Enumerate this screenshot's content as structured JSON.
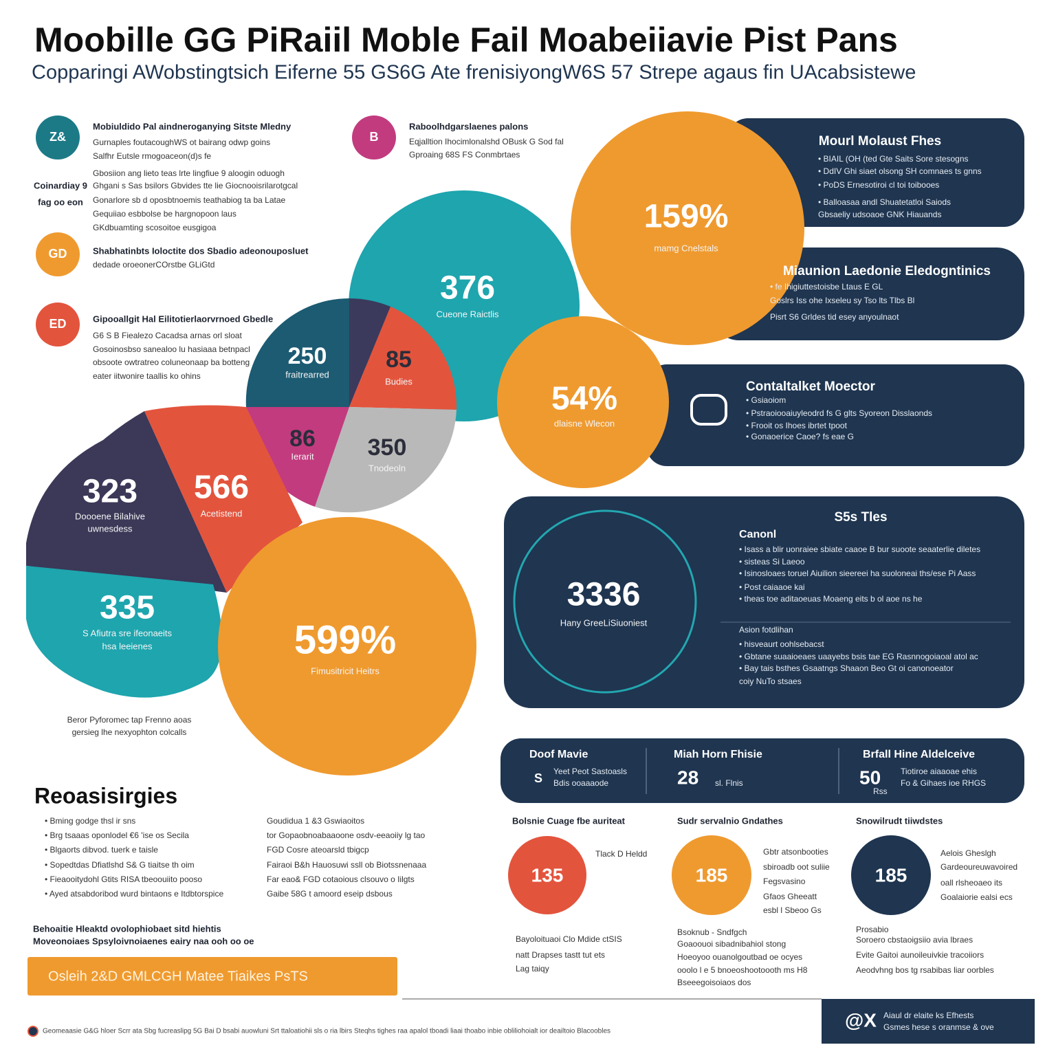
{
  "header": {
    "title": "Moobille GG PiRaiil Moble Fail Moabeiiavie Pist Pans",
    "subtitle": "Copparingi AWobstingtsich Eiferne 55 GS6G Ate frenisiyongW6S 57 Strepe agaus fin UAcabsistewe"
  },
  "features": [
    {
      "icon": "Z&",
      "title": "Mobiuldido Pal aindneroganying Sitste Mledny",
      "lines": [
        "Gurnaples foutacoughWS ot bairang odwp goins",
        "Salfhr Eutsle rmogoaceon(d)s fe",
        "Gbosiion ang lieto teas lrte lingfiue 9 aloogin oduogh",
        "Ghgani s Sas bsilors Gbvides tte lie Giocnooisrilarotgcal",
        "Gonarlore sb d oposbtnoemis teathabiog ta ba Latae",
        "Gequiiao esbbolse be hargnopoon laus",
        "GKdbuamting scosoitoe eusgigoa"
      ],
      "side": [
        "Coinardiay 9",
        "fag oo eon"
      ]
    },
    {
      "icon": "GD",
      "title": "Shabhatinbts Ioloctite dos Sbadio adeonouposluet",
      "lines": [
        "dedade oroeonerCOrstbe GLiGtd"
      ]
    },
    {
      "icon": "ED",
      "title": "Gipooallgit Hal Eilitotierlaorvrnoed Gbedle",
      "lines": [
        "G6 S B Fiealezo Cacadsa arnas orl sloat",
        "Gosoinosbso sanealoo lu hasiaaa betnpacl",
        "obsoote owtratreo coluneonaap ba botteng",
        "eater iitwonire taallis ko ohins"
      ]
    },
    {
      "icon": "B",
      "title": "Raboolhdgarslaenes palons",
      "lines": [
        "Eqjalltion Ihocimlonalshd OBusk G Sod fal",
        "Gproaing 68S FS Conmbrtaes"
      ]
    }
  ],
  "pie": [
    {
      "value": "250",
      "caption": "fraitrearred"
    },
    {
      "value": "85",
      "caption": "Budies"
    },
    {
      "value": "86",
      "caption": "Ierarit"
    },
    {
      "value": "350",
      "caption": "Tnodeoln"
    }
  ],
  "blocks": [
    {
      "value": "323",
      "caption": [
        "Doooene Bilahive",
        "uwnesdess"
      ]
    },
    {
      "value": "566",
      "caption": [
        "Acetistend"
      ]
    },
    {
      "value": "335",
      "caption": [
        "S Afiutra sre ifeonaeits",
        "hsa leeienes"
      ]
    }
  ],
  "circles": [
    {
      "value": "599%",
      "caption": "Fimusitricit Heitrs"
    },
    {
      "value": "376",
      "caption": "Cueone Raictlis"
    },
    {
      "value": "159%",
      "caption": "mamg Cnelstals"
    },
    {
      "value": "54%",
      "caption": "dlaisne Wlecon"
    }
  ],
  "note": [
    "Beror Pyforomec tap Frenno aoas",
    "gersieg lhe nexyophton colcalls"
  ],
  "panels": [
    {
      "title": "Mourl Molaust Fhes",
      "lines": [
        "• BIAIL (OH (ted Gte Saits Sore stesogns",
        "• DdIV Ghi siaet olsong SH comnaes ts gnns",
        "• PoDS Ernesotiroi cl toi toibooes",
        "• Balloasaa andl Shuatetatloi Saiods",
        "Gbsaeliy udsoaoe GNK Hiauands"
      ]
    },
    {
      "title": "Miaunion Laedonie Eledogntinics",
      "lines": [
        "• fe Ihigiuttestoisbe Ltaus E GL",
        "Goslrs Iss ohe Ixseleu sy Tso lts Tlbs Bl",
        "Pisrt S6 Grldes tid esey anyoulnaot"
      ]
    },
    {
      "title": "Contaltalket Moector",
      "lines": [
        "• Gsiaoiom",
        "• Pstraoiooaiuyleodrd fs G glts Syoreon Disslaonds",
        "• Frooit os Ihoes ibrtet tpoot",
        "• Gonaoerice Caoe? fs eae G"
      ]
    }
  ],
  "summary": {
    "value": "3336",
    "caption": "Hany GreeLiSiuoniest",
    "title": "S5s Tles",
    "subtitle": "Canonl",
    "lines": [
      "• Isass a blir uonraiee sbiate caaoe B bur suoote seaaterlie diletes",
      "• sisteas Si Laeoo",
      "• Isinosloaes toruel Aiuilion sieereei ha suoloneai ths/ese Pi Aass",
      "• Post caiaaoe kai",
      "• theas toe aditaoeuas Moaeng eits b ol aoe ns he"
    ],
    "section": "Asion fotdlihan",
    "section_lines": [
      "• hisveaurt oohlsebacst",
      "• Gbtane suaaioeaes uaayebs bsis tae EG Rasnnogoiaoal atol ac",
      "• Bay tais bsthes Gsaatngs Shaaon Beo Gt oi canonoeator",
      "coiy NuTo stsaes"
    ]
  },
  "stats": [
    {
      "title": "Doof Mavie",
      "icon": "S",
      "lines": [
        "Yeet Peot Sastoasls",
        "Bdis ooaaaode"
      ]
    },
    {
      "title": "Miah Horn Fhisie",
      "value": "28",
      "unit": "sl. Flnis"
    },
    {
      "title": "Brfall Hine Aldelceive",
      "value": "50",
      "unit": "Rss",
      "lines": [
        "Tiotiroe aiaaoae ehis",
        "Fo & Gihaes ioe RHGS"
      ]
    }
  ],
  "metrics": [
    {
      "label": "Bolsnie Cuage fbe auriteat",
      "value": "135",
      "lines": [
        "Tlack D Heldd"
      ],
      "below": [
        "Bayoloituaoi Clo Mdide ctSIS",
        "natt Drapses tastt tut ets",
        "Lag taiqy"
      ]
    },
    {
      "label": "Sudr servalnio Gndathes",
      "value": "185",
      "lines": [
        "Gbtr atsonbooties",
        "sbiroadb oot suliie",
        "Fegsvasino",
        "Gfaos Gheeatt",
        "esbl l Sbeoo Gs"
      ],
      "below": [
        "Bsoknub - Sndfgch",
        "Goaoouoi sibadnibahiol stong",
        "Hoeoyoo ouanolgoutbad oe ocyes",
        "ooolo l e 5 bnoeoshootoooth ms H8",
        "Bseeegoisoiaos dos"
      ]
    },
    {
      "label": "Snowilrudt tiiwdstes",
      "value": "185",
      "lines": [
        "Aelois Gheslgh",
        "Gardeoureuwavoired",
        "oall rlsheoaeo its",
        "Goalaiorie ealsi ecs"
      ],
      "below": [
        "Prosabio",
        "Soroero cbstaoigsiio avia lbraes",
        "Evite Gaitoi aunoileuivkie tracoiiors",
        "Aeodvhng bos tg rsabibas liar oorbles"
      ]
    }
  ],
  "reasons": {
    "title": "Reoasisirgies",
    "left": [
      "• Bming godge thsl ir sns",
      "• Brg tsaaas oponlodel €6 'ise os Secila",
      "• Blgaorts dibvod. tuerk e taisle",
      "• Sopedtdas Dfiatlshd S& G tiaitse th oim",
      "• Fieaooitydohl Gtits RISA tbeoouiito pooso",
      "• Ayed atsabdoribod wurd bintaons e Itdbtorspice"
    ],
    "right": [
      "Goudidua 1 &3 Gswiaoitos",
      "tor Gopaobnoabaaoone osdv-eeaoiiy lg tao",
      "FGD Cosre ateoarsld tbigcp",
      "Fairaoi B&h Hauosuwi ssll ob Biotssnenaaa",
      "Far eao& FGD cotaoious clsouvo o Iilgts",
      "Gaibe 58G t amoord eseip dsbous"
    ],
    "note": [
      "Behoaitie Hleaktd ovolophiobaet sitd hiehtis",
      "Moveonoiaes Spsyloivnoiaenes eairy naa ooh oo oe"
    ]
  },
  "cta": "Osleih 2&D GMLCGH Matee Tiaikes PsTS",
  "footer": {
    "text": "Geomeaasie G&G hloer Scrr ata Sbg fucreaslipg 5G Bai D bsabi auowluni Srt ttaloatiohii sls o ria lbirs Steqhs tighes raa apalol tboadi liaai thoabo inbie obliliohoialt ior deailtoio Blacoobles",
    "badge": "@X",
    "badge_lines": [
      "Aiaul dr elaite ks Efhests",
      "Gsmes hese s oranmse & ove"
    ]
  }
}
